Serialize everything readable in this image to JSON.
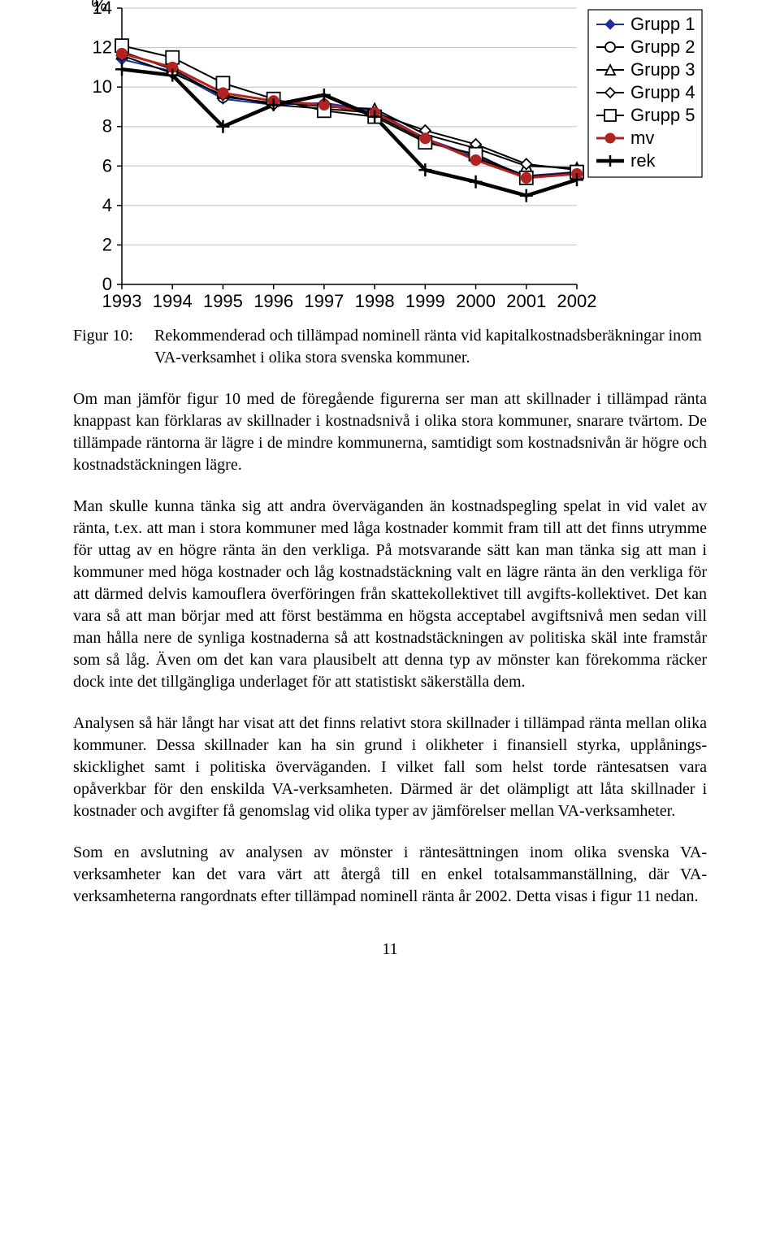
{
  "chart": {
    "type": "line",
    "y_label": "%",
    "y_label_fontsize": 22,
    "x_categories": [
      "1993",
      "1994",
      "1995",
      "1996",
      "1997",
      "1998",
      "1999",
      "2000",
      "2001",
      "2002"
    ],
    "ylim": [
      0,
      14
    ],
    "ytick_step": 2,
    "yticks": [
      "0",
      "2",
      "4",
      "6",
      "8",
      "10",
      "12",
      "14"
    ],
    "tick_font_size": 22,
    "axis_color": "#000000",
    "grid_color": "#c0c0c0",
    "background_color": "#ffffff",
    "legend_border_color": "#000000",
    "legend_bg": "#ffffff",
    "legend_position": "top-right",
    "legend_font_size": 22,
    "series": [
      {
        "name": "Grupp 1",
        "color": "#1f2f9e",
        "marker": "diamond-filled",
        "line_width": 2,
        "values": [
          11.4,
          10.8,
          9.4,
          9.1,
          9.2,
          8.8,
          7.4,
          6.5,
          5.5,
          5.7
        ]
      },
      {
        "name": "Grupp 2",
        "color": "#000000",
        "marker": "circle-open",
        "line_width": 2,
        "values": [
          11.8,
          10.9,
          9.5,
          9.2,
          9.1,
          8.6,
          7.3,
          6.4,
          5.5,
          5.6
        ]
      },
      {
        "name": "Grupp 3",
        "color": "#000000",
        "marker": "triangle-open",
        "line_width": 2,
        "values": [
          11.7,
          11.0,
          9.7,
          9.3,
          9.0,
          8.9,
          7.6,
          6.9,
          6.0,
          5.9
        ]
      },
      {
        "name": "Grupp 4",
        "color": "#000000",
        "marker": "diamond-open",
        "line_width": 2,
        "values": [
          11.6,
          10.7,
          9.6,
          9.1,
          8.9,
          8.7,
          7.8,
          7.1,
          6.1,
          5.8
        ]
      },
      {
        "name": "Grupp 5",
        "color": "#000000",
        "marker": "square-open",
        "line_width": 2,
        "values": [
          12.1,
          11.5,
          10.2,
          9.4,
          8.8,
          8.5,
          7.2,
          6.6,
          5.4,
          5.7
        ]
      },
      {
        "name": "mv",
        "color": "#b22222",
        "marker": "circle-filled",
        "line_width": 3,
        "values": [
          11.7,
          11.0,
          9.7,
          9.3,
          9.1,
          8.7,
          7.4,
          6.3,
          5.4,
          5.6
        ]
      },
      {
        "name": "rek",
        "color": "#000000",
        "marker": "plus",
        "line_width": 4.5,
        "values": [
          10.9,
          10.6,
          8.0,
          9.1,
          9.6,
          8.5,
          5.8,
          5.2,
          4.5,
          5.3
        ]
      }
    ]
  },
  "caption": {
    "label": "Figur 10:",
    "text": "Rekommenderad och tillämpad nominell ränta vid kapitalkostnadsberäkningar inom VA-verksamhet i olika stora svenska kommuner."
  },
  "paragraphs": [
    "Om man jämför figur 10 med de föregående figurerna ser man att skillnader i tillämpad ränta knappast kan förklaras av skillnader i kostnadsnivå i olika stora kommuner, snarare tvärtom. De tillämpade räntorna är lägre i de mindre kommunerna, samtidigt som kostnadsnivån är högre och kostnadstäckningen lägre.",
    "Man skulle kunna tänka sig att andra överväganden än kostnadspegling spelat in vid valet av ränta, t.ex. att man i stora kommuner med låga kostnader kommit fram till att det finns utrymme för uttag av en högre ränta än den verkliga. På motsvarande sätt kan man tänka sig att man i kommuner med höga kostnader och låg kostnadstäckning valt en lägre ränta än den verkliga för att därmed delvis kamouflera överföringen från skattekollektivet till avgifts-kollektivet. Det kan vara så att man börjar med att först bestämma en högsta acceptabel avgiftsnivå men sedan vill man hålla nere de synliga kostnaderna så att kostnadstäckningen av politiska skäl inte framstår som så låg. Även om det kan vara plausibelt att denna typ av mönster kan förekomma räcker dock inte det tillgängliga underlaget för att statistiskt säkerställa dem.",
    "Analysen så här långt har visat att det finns relativt stora skillnader i tillämpad ränta mellan olika kommuner. Dessa skillnader kan ha sin grund i olikheter i finansiell styrka, upplånings-skicklighet samt i politiska överväganden. I vilket fall som helst torde räntesatsen vara opåverkbar för den enskilda VA-verksamheten. Därmed är det olämpligt att låta skillnader i kostnader och avgifter få genomslag vid olika typer av jämförelser mellan VA-verksamheter.",
    "Som en avslutning av analysen av mönster i räntesättningen inom olika svenska VA-verksamheter kan det vara värt att återgå till en enkel totalsammanställning, där VA-verksamheterna rangordnats efter tillämpad nominell ränta år 2002. Detta visas i figur 11 nedan."
  ],
  "page_number": "11"
}
